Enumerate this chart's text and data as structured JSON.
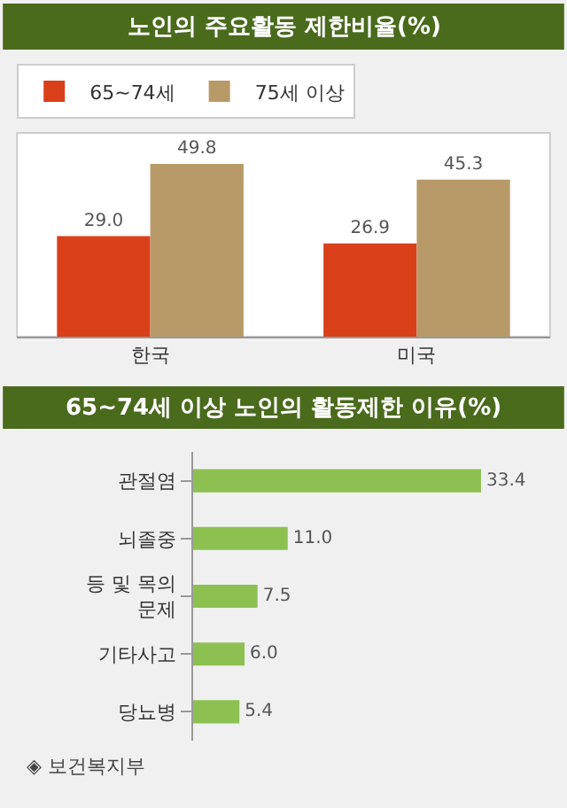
{
  "chart_data": [
    {
      "type": "bar",
      "title": "노인의 주요활동 제한비율(%)",
      "categories": [
        "한국",
        "미국"
      ],
      "series": [
        {
          "name": "65~74세",
          "color": "#d9401a",
          "values": [
            29.0,
            26.9
          ],
          "value_labels": [
            "29.0",
            "26.9"
          ]
        },
        {
          "name": "75세 이상",
          "color": "#b89a68",
          "values": [
            49.8,
            45.3
          ],
          "value_labels": [
            "49.8",
            "45.3"
          ]
        }
      ],
      "legend": "top left"
    },
    {
      "type": "bar",
      "orientation": "horizontal",
      "title": "65~74세 이상 노인의 활동제한 이유(%)",
      "categories": [
        "관절염",
        "뇌졸중",
        "등 및 목의 문제",
        "기타사고",
        "당뇨병"
      ],
      "series": [
        {
          "color": "#8cc152",
          "values": [
            33.4,
            11.0,
            7.5,
            6.0,
            5.4
          ],
          "value_labels": [
            "33.4",
            "11.0",
            "7.5",
            "6.0",
            "5.4"
          ]
        }
      ],
      "annotations": [
        "◈ 보건복지부"
      ]
    }
  ]
}
